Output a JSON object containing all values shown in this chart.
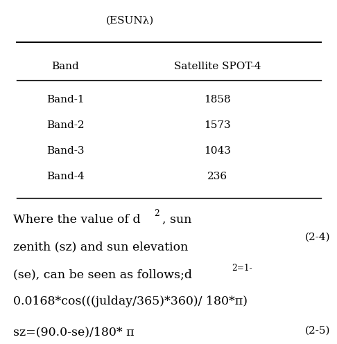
{
  "title_top": "(ESUNλ)",
  "col_headers": [
    "Band",
    "Satellite SPOT-4"
  ],
  "rows": [
    [
      "Band-1",
      "1858"
    ],
    [
      "Band-2",
      "1573"
    ],
    [
      "Band-3",
      "1043"
    ],
    [
      "Band-4",
      "236"
    ]
  ],
  "text_block_line1": "Where the value of d",
  "text_block_line1_super": "2",
  "text_block_line2": ", sun",
  "text_block_line3": "zenith (sz) and sun elevation",
  "text_block_line4": "(se), can be seen as follows;d",
  "text_block_line4_super": "2=1-",
  "text_block_line5": "0.0168*cos(((julday/365)*360)/ 180*π)",
  "eq1_label": "(2-4)",
  "text_block_line6": "sz=(90.0-se)/180* π",
  "eq2_label": "(2-5)",
  "bg_color": "#ffffff",
  "text_color": "#000000",
  "font_size_header": 11,
  "font_size_body": 11,
  "font_size_text": 12.5
}
